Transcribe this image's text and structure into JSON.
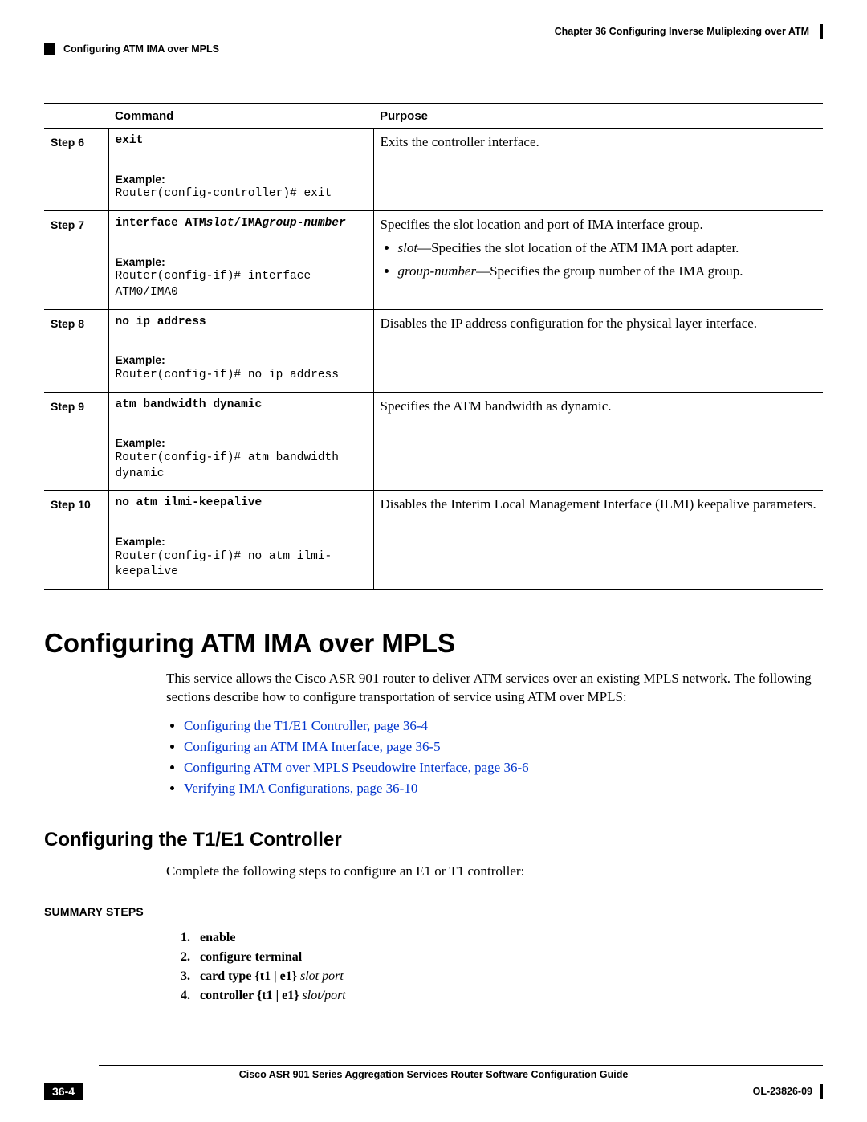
{
  "header": {
    "chapter": "Chapter 36    Configuring Inverse Muliplexing over ATM",
    "section": "Configuring ATM IMA over MPLS"
  },
  "table": {
    "headers": {
      "command": "Command",
      "purpose": "Purpose"
    },
    "rows": [
      {
        "step": "Step 6",
        "cmd_prefix": "exit",
        "cmd_ital": "",
        "example_label": "Example:",
        "example_code": "Router(config-controller)# exit",
        "purpose": "Exits the controller interface."
      },
      {
        "step": "Step 7",
        "cmd_prefix": "interface ATM",
        "cmd_ital": "slot",
        "cmd_mid": "/IMA",
        "cmd_ital2": "group-number",
        "example_label": "Example:",
        "example_code": "Router(config-if)# interface ATM0/IMA0",
        "purpose": "Specifies the slot location and port of IMA interface group.",
        "bullets": [
          {
            "term": "slot",
            "desc": "—Specifies the slot location of the ATM IMA port adapter."
          },
          {
            "term": "group-number",
            "desc": "—Specifies the group number of the IMA group."
          }
        ]
      },
      {
        "step": "Step 8",
        "cmd_prefix": "no ip address",
        "cmd_ital": "",
        "example_label": "Example:",
        "example_code": "Router(config-if)# no ip address",
        "purpose": "Disables the IP address configuration for the physical layer interface."
      },
      {
        "step": "Step 9",
        "cmd_prefix": "atm bandwidth dynamic",
        "cmd_ital": "",
        "example_label": "Example:",
        "example_code": "Router(config-if)# atm bandwidth dynamic",
        "purpose": "Specifies the ATM bandwidth as dynamic."
      },
      {
        "step": "Step 10",
        "cmd_prefix": "no atm ilmi-keepalive",
        "cmd_ital": "",
        "example_label": "Example:",
        "example_code": "Router(config-if)# no atm ilmi-keepalive",
        "purpose": "Disables the Interim Local Management Interface (ILMI) keepalive parameters."
      }
    ]
  },
  "heading_main": "Configuring ATM IMA over MPLS",
  "intro": "This service allows the Cisco ASR 901 router to deliver ATM services over an existing MPLS network. The following sections describe how to configure transportation of service using ATM over MPLS:",
  "links": [
    "Configuring the T1/E1 Controller, page 36-4",
    "Configuring an ATM IMA Interface, page 36-5",
    "Configuring ATM over MPLS Pseudowire Interface, page 36-6",
    "Verifying IMA Configurations, page 36-10"
  ],
  "heading_sub": "Configuring the T1/E1 Controller",
  "sub_intro": "Complete the following steps to configure an E1 or T1 controller:",
  "summary_label": "SUMMARY STEPS",
  "summary_steps": [
    {
      "n": "1.",
      "bold": "enable",
      "ital": ""
    },
    {
      "n": "2.",
      "bold": "configure terminal",
      "ital": ""
    },
    {
      "n": "3.",
      "bold": "card type {t1 | e1} ",
      "ital": "slot port"
    },
    {
      "n": "4.",
      "bold": "controller {t1 | e1} ",
      "ital": "slot/port"
    }
  ],
  "footer": {
    "guide": "Cisco ASR 901 Series Aggregation Services Router Software Configuration Guide",
    "page": "36-4",
    "doc": "OL-23826-09"
  },
  "colors": {
    "link": "#0033cc",
    "text": "#000000",
    "bg": "#ffffff"
  }
}
